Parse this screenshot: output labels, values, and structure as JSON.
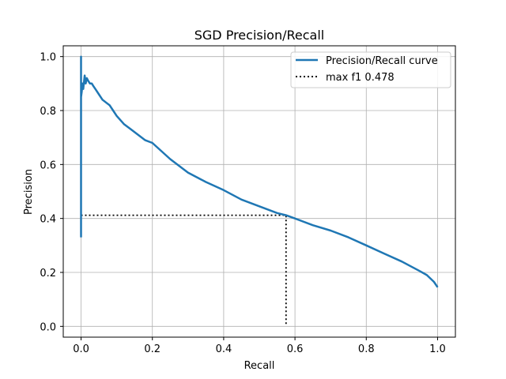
{
  "chart_data": {
    "type": "line",
    "title": "SGD Precision/Recall",
    "xlabel": "Recall",
    "ylabel": "Precision",
    "xlim": [
      -0.05,
      1.05
    ],
    "ylim": [
      -0.04,
      1.04
    ],
    "grid": true,
    "legend_position": "top-right",
    "x_ticks": [
      0.0,
      0.2,
      0.4,
      0.6,
      0.8,
      1.0
    ],
    "x_tick_labels": [
      "0.0",
      "0.2",
      "0.4",
      "0.6",
      "0.8",
      "1.0"
    ],
    "y_ticks": [
      0.0,
      0.2,
      0.4,
      0.6,
      0.8,
      1.0
    ],
    "y_tick_labels": [
      "0.0",
      "0.2",
      "0.4",
      "0.6",
      "0.8",
      "1.0"
    ],
    "series": [
      {
        "name": "Precision/Recall curve",
        "color": "#1f77b4",
        "style": "solid",
        "x": [
          0.0,
          0.0,
          0.0,
          0.0,
          0.002,
          0.004,
          0.006,
          0.01,
          0.013,
          0.016,
          0.02,
          0.025,
          0.03,
          0.035,
          0.04,
          0.05,
          0.06,
          0.07,
          0.08,
          0.09,
          0.1,
          0.12,
          0.14,
          0.16,
          0.18,
          0.2,
          0.25,
          0.3,
          0.35,
          0.4,
          0.45,
          0.5,
          0.55,
          0.575,
          0.6,
          0.65,
          0.7,
          0.75,
          0.8,
          0.85,
          0.9,
          0.95,
          0.97,
          0.99,
          1.0
        ],
        "y": [
          0.33,
          0.8,
          1.0,
          0.85,
          0.87,
          0.9,
          0.88,
          0.93,
          0.9,
          0.92,
          0.91,
          0.9,
          0.9,
          0.89,
          0.88,
          0.86,
          0.84,
          0.83,
          0.82,
          0.8,
          0.78,
          0.75,
          0.73,
          0.71,
          0.69,
          0.68,
          0.62,
          0.57,
          0.535,
          0.505,
          0.47,
          0.445,
          0.42,
          0.412,
          0.4,
          0.375,
          0.355,
          0.33,
          0.3,
          0.27,
          0.24,
          0.205,
          0.19,
          0.165,
          0.145
        ]
      },
      {
        "name": "max f1 0.478",
        "color": "#000000",
        "style": "dotted",
        "x": [
          0.0,
          0.575,
          0.575
        ],
        "y": [
          0.412,
          0.412,
          0.0
        ]
      }
    ]
  }
}
